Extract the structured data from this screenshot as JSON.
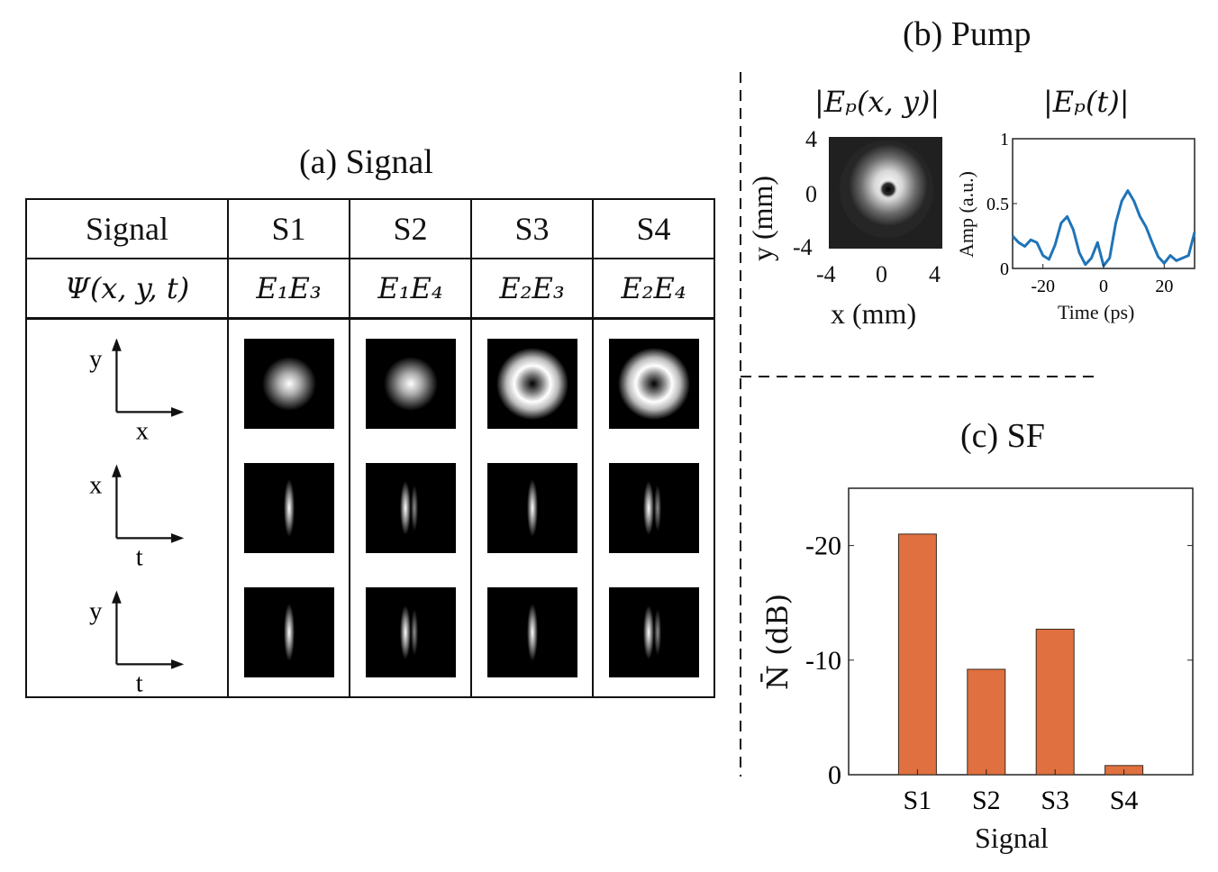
{
  "panel_a": {
    "title": "(a) Signal",
    "row_header": "Signal",
    "row_psi": "Ψ(x, y, t)",
    "columns": [
      {
        "label": "S1",
        "field": "E₁E₃",
        "profile": "gaussian",
        "temporal": "single"
      },
      {
        "label": "S2",
        "field": "E₁E₄",
        "profile": "gaussian",
        "temporal": "double"
      },
      {
        "label": "S3",
        "field": "E₂E₃",
        "profile": "donut",
        "temporal": "single"
      },
      {
        "label": "S4",
        "field": "E₂E₄",
        "profile": "donut",
        "temporal": "double"
      }
    ],
    "axis_pairs": [
      {
        "vertical": "y",
        "horizontal": "x"
      },
      {
        "vertical": "x",
        "horizontal": "t"
      },
      {
        "vertical": "y",
        "horizontal": "t"
      }
    ]
  },
  "panel_b": {
    "title": "(b) Pump",
    "spatial_title": "|Eₚ(x, y)|",
    "temporal_title": "|Eₚ(t)|",
    "spatial_xlabel": "x (mm)",
    "spatial_ylabel": "y (mm)",
    "spatial_xticks": [
      "-4",
      "0",
      "4"
    ],
    "spatial_yticks": [
      "4",
      "0",
      "-4"
    ],
    "temporal_xlabel": "Time (ps)",
    "temporal_ylabel": "Amp (a.u.)",
    "temporal_xticks": [
      "-20",
      "0",
      "20"
    ],
    "temporal_yticks": [
      "1",
      "0.5",
      "0"
    ],
    "series_color": "#1f74b8"
  },
  "chart_data": [
    {
      "type": "line",
      "title": "|Eₚ(t)|",
      "xlabel": "Time (ps)",
      "ylabel": "Amp (a.u.)",
      "xlim": [
        -30,
        30
      ],
      "ylim": [
        0,
        1
      ],
      "x": [
        -30,
        -28,
        -26,
        -24,
        -22,
        -20,
        -18,
        -16,
        -14,
        -12,
        -10,
        -8,
        -6,
        -4,
        -2,
        0,
        2,
        4,
        6,
        8,
        10,
        12,
        14,
        16,
        18,
        20,
        22,
        24,
        26,
        28,
        30
      ],
      "y": [
        0.25,
        0.2,
        0.17,
        0.22,
        0.2,
        0.1,
        0.07,
        0.18,
        0.35,
        0.4,
        0.3,
        0.12,
        0.03,
        0.08,
        0.2,
        0.02,
        0.08,
        0.35,
        0.52,
        0.6,
        0.52,
        0.4,
        0.32,
        0.2,
        0.09,
        0.04,
        0.1,
        0.06,
        0.08,
        0.1,
        0.28
      ]
    },
    {
      "type": "bar",
      "title": "(c) SF",
      "xlabel": "Signal",
      "ylabel": "N̄ (dB)",
      "categories": [
        "S1",
        "S2",
        "S3",
        "S4"
      ],
      "values": [
        -21,
        -9.2,
        -12.7,
        -0.8
      ],
      "ylim": [
        0,
        -25
      ],
      "yticks": [
        "-20",
        "-10",
        "0"
      ],
      "color": "#e07040"
    }
  ]
}
